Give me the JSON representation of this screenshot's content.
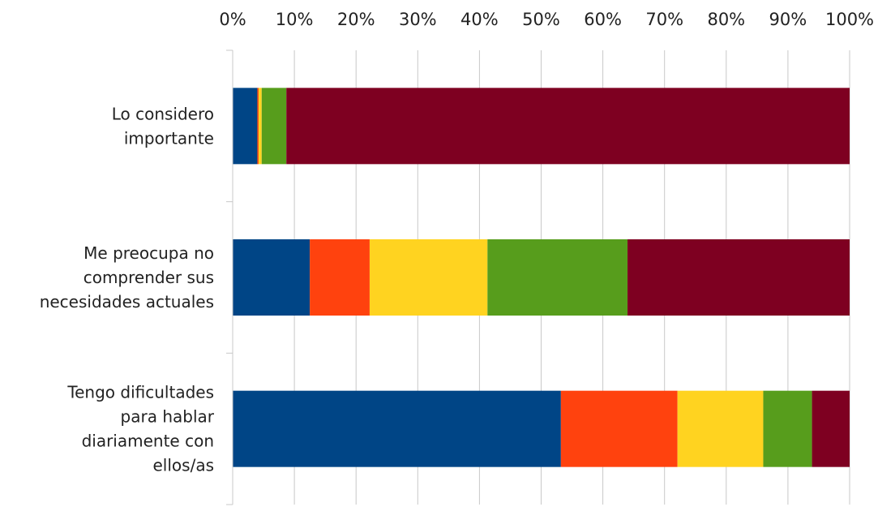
{
  "chart_data": {
    "type": "bar",
    "orientation": "horizontal",
    "stacked": "percent",
    "title": "",
    "xlabel": "",
    "ylabel": "",
    "xlim": [
      0,
      100
    ],
    "x_ticks": [
      "0%",
      "10%",
      "20%",
      "30%",
      "40%",
      "50%",
      "60%",
      "70%",
      "80%",
      "90%",
      "100%"
    ],
    "x_axis_position": "top",
    "grid": true,
    "legend": "none",
    "categories": [
      [
        "Lo considero",
        "importante"
      ],
      [
        "Me preocupa no",
        "comprender sus",
        "necesidades actuales"
      ],
      [
        "Tengo dificultades",
        "para hablar",
        "diariamente con",
        "ellos/as"
      ]
    ],
    "series": [
      {
        "color": "#004586",
        "values": [
          4.0,
          12.5,
          53.2
        ]
      },
      {
        "color": "#ff420e",
        "values": [
          0.2,
          9.7,
          18.9
        ]
      },
      {
        "color": "#ffd320",
        "values": [
          0.5,
          19.1,
          13.9
        ]
      },
      {
        "color": "#579d1c",
        "values": [
          4.0,
          22.7,
          7.9
        ]
      },
      {
        "color": "#7e0021",
        "values": [
          91.3,
          36.0,
          6.1
        ]
      }
    ]
  }
}
